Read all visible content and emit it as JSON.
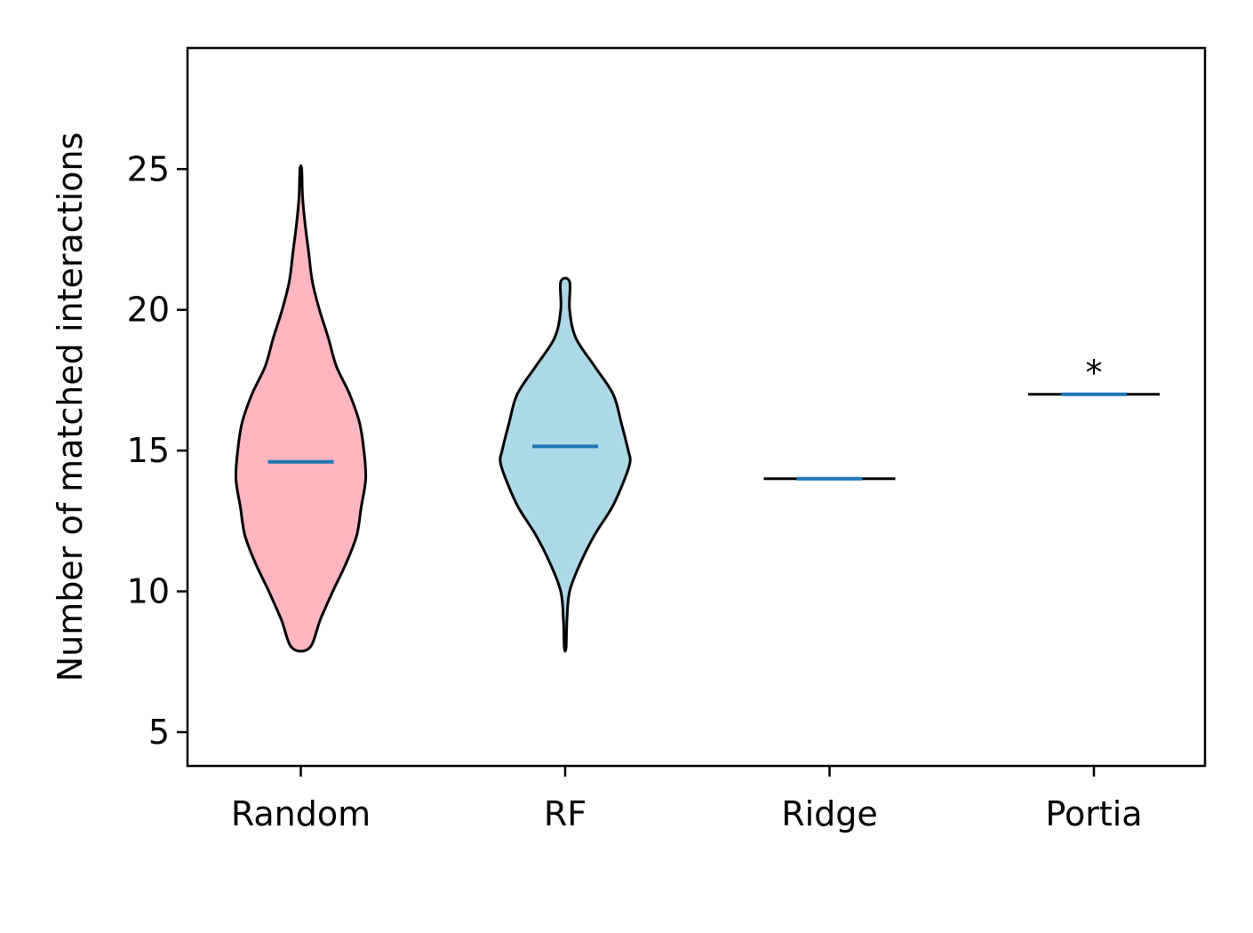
{
  "chart_data": {
    "type": "violin",
    "title": "",
    "xlabel": "",
    "ylabel": "Number of matched interactions",
    "ylim": [
      3.8,
      29.3
    ],
    "yticks": [
      5,
      10,
      15,
      20,
      25
    ],
    "grid": false,
    "categories": [
      "Random",
      "RF",
      "Ridge",
      "Portia"
    ],
    "series": [
      {
        "category": "Random",
        "color": "#ffb6c1",
        "min": 8,
        "max": 25,
        "mean": 14.6,
        "profile": [
          [
            8,
            0.1
          ],
          [
            9,
            0.22
          ],
          [
            10,
            0.36
          ],
          [
            11,
            0.51
          ],
          [
            12,
            0.63
          ],
          [
            13,
            0.68
          ],
          [
            14,
            0.73
          ],
          [
            15,
            0.71
          ],
          [
            16,
            0.66
          ],
          [
            17,
            0.55
          ],
          [
            18,
            0.4
          ],
          [
            19,
            0.31
          ],
          [
            20,
            0.21
          ],
          [
            21,
            0.13
          ],
          [
            22,
            0.09
          ],
          [
            23,
            0.05
          ],
          [
            24,
            0.02
          ],
          [
            25,
            0.01
          ]
        ]
      },
      {
        "category": "RF",
        "color": "#add8e6",
        "min": 8,
        "max": 21,
        "mean": 15.15,
        "profile": [
          [
            8,
            0.01
          ],
          [
            9,
            0.02
          ],
          [
            10,
            0.05
          ],
          [
            11,
            0.17
          ],
          [
            12,
            0.33
          ],
          [
            13,
            0.53
          ],
          [
            14,
            0.67
          ],
          [
            14.6,
            0.73
          ],
          [
            15,
            0.71
          ],
          [
            16,
            0.63
          ],
          [
            17,
            0.54
          ],
          [
            18,
            0.33
          ],
          [
            19,
            0.12
          ],
          [
            20,
            0.05
          ],
          [
            21,
            0.05
          ]
        ]
      },
      {
        "category": "Ridge",
        "color": "#000000",
        "min": 14,
        "max": 14,
        "mean": 14
      },
      {
        "category": "Portia",
        "color": "#000000",
        "min": 17,
        "max": 17,
        "mean": 17,
        "annotation": "*"
      }
    ]
  }
}
